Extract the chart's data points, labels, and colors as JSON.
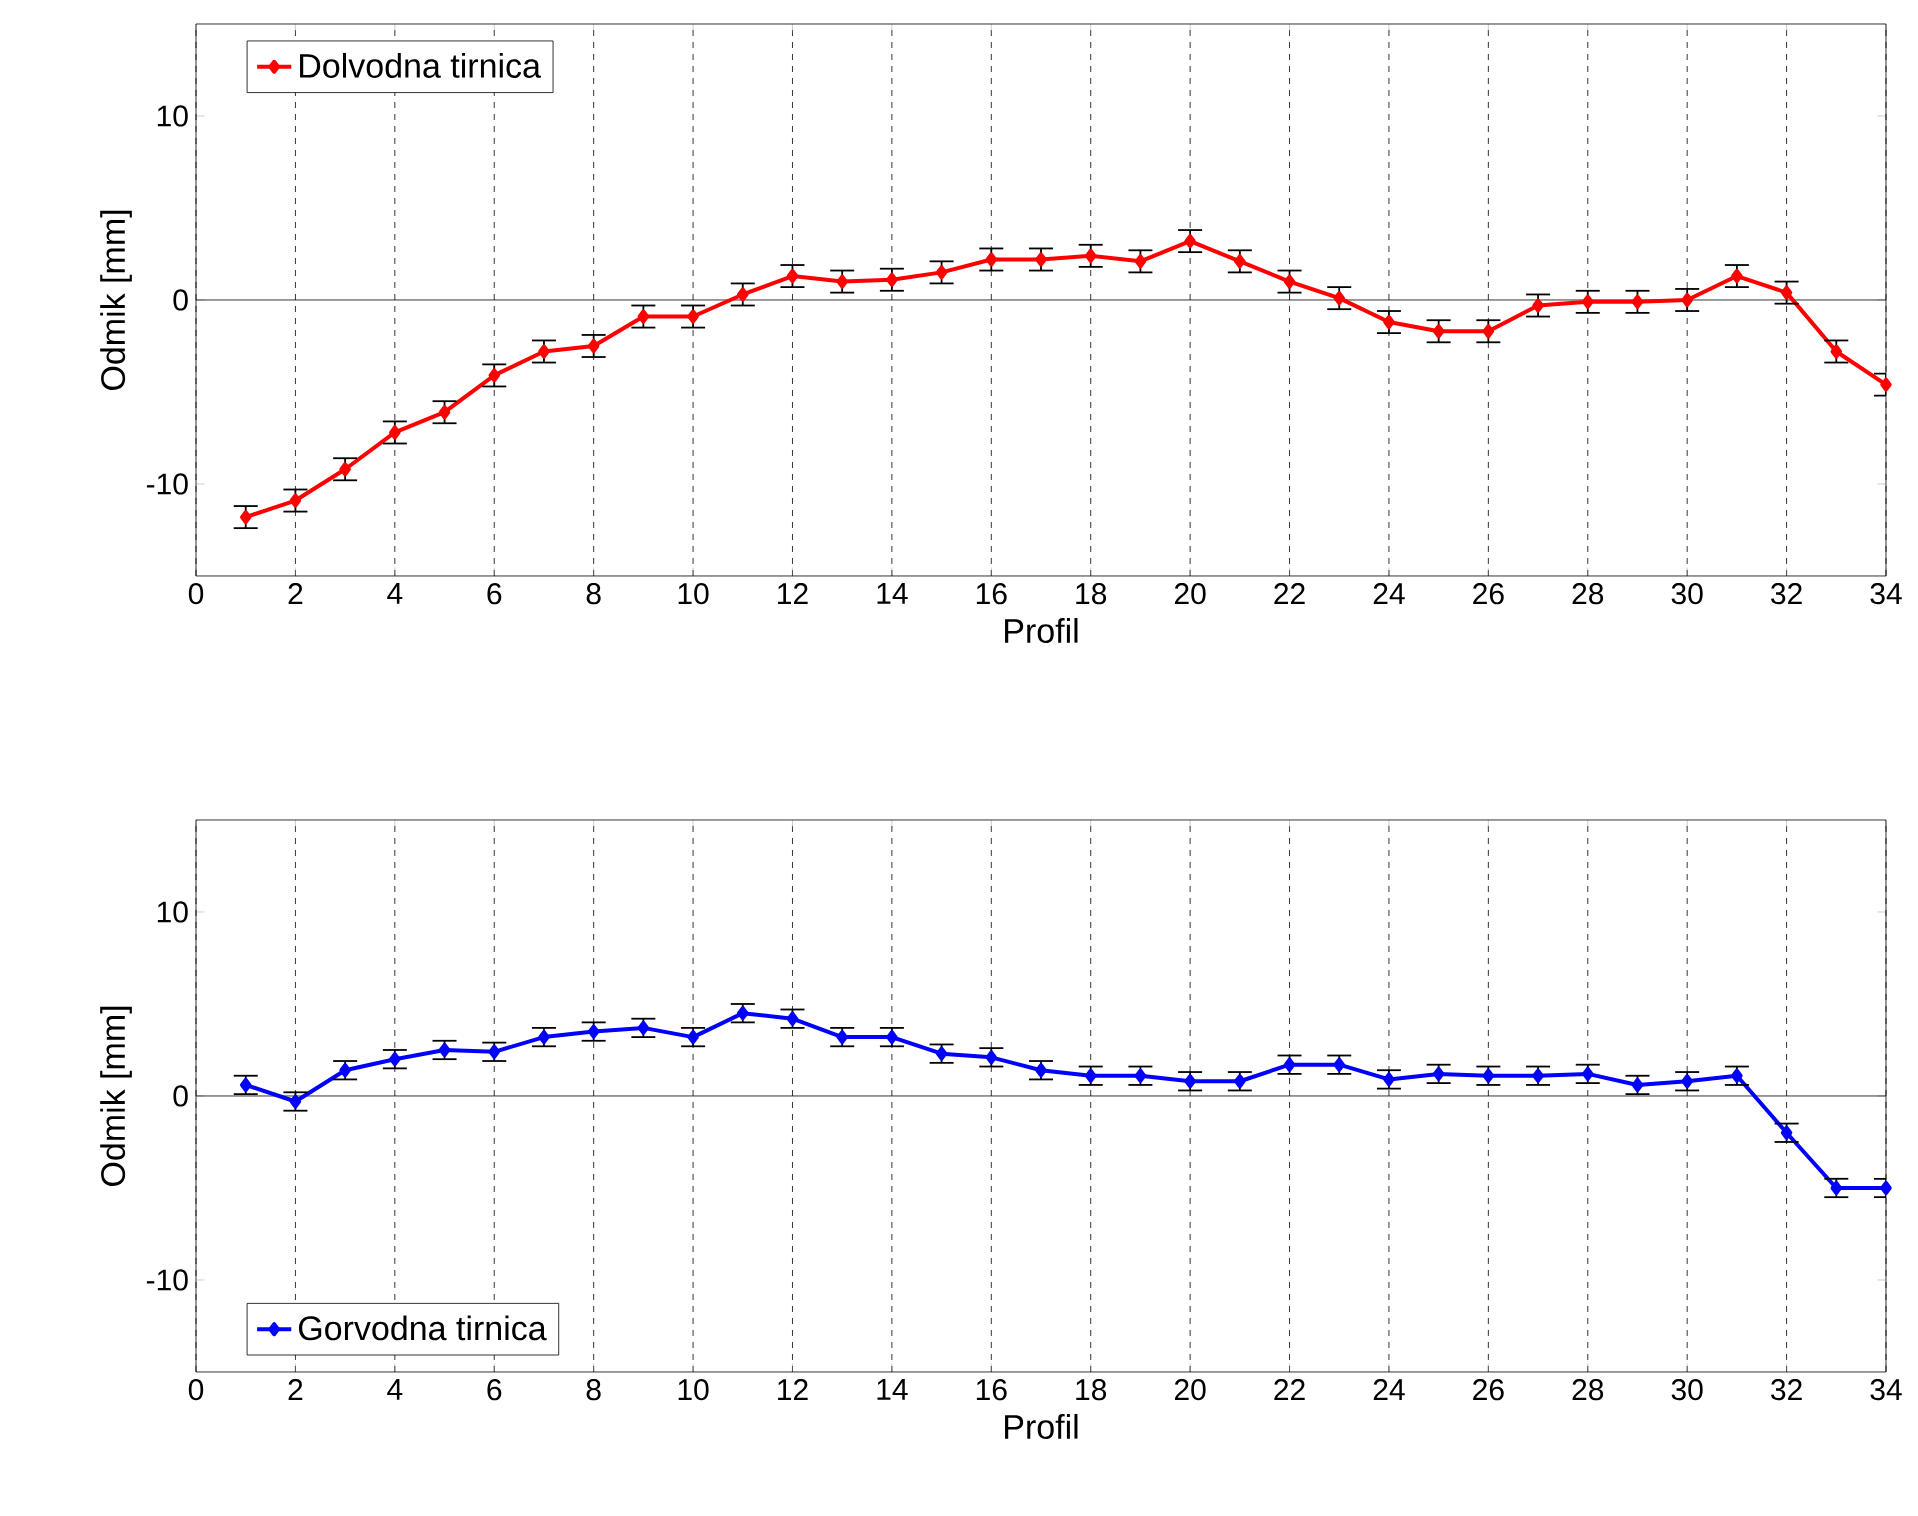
{
  "chart_data": [
    {
      "type": "line",
      "xlabel": "Profil",
      "ylabel": "Odmik [mm]",
      "x": [
        1,
        2,
        3,
        4,
        5,
        6,
        7,
        8,
        9,
        10,
        11,
        12,
        13,
        14,
        15,
        16,
        17,
        18,
        19,
        20,
        21,
        22,
        23,
        24,
        25,
        26,
        27,
        28,
        29,
        30,
        31,
        32,
        33,
        34
      ],
      "series": [
        {
          "name": "Dolvodna tirnica",
          "color": "#ff0000",
          "values": [
            -11.8,
            -10.9,
            -9.2,
            -7.2,
            -6.1,
            -4.1,
            -2.8,
            -2.5,
            -0.9,
            -0.9,
            0.3,
            1.3,
            1.0,
            1.1,
            1.5,
            2.2,
            2.2,
            2.4,
            2.1,
            3.2,
            2.1,
            1.0,
            0.1,
            -1.2,
            -1.7,
            -1.7,
            -0.3,
            -0.1,
            -0.1,
            0,
            1.3,
            0.4,
            -2.8,
            -4.6
          ],
          "errors": [
            0.6,
            0.6,
            0.6,
            0.6,
            0.6,
            0.6,
            0.6,
            0.6,
            0.6,
            0.6,
            0.6,
            0.6,
            0.6,
            0.6,
            0.6,
            0.6,
            0.6,
            0.6,
            0.6,
            0.6,
            0.6,
            0.6,
            0.6,
            0.6,
            0.6,
            0.6,
            0.6,
            0.6,
            0.6,
            0.6,
            0.6,
            0.6,
            0.6,
            0.6
          ]
        }
      ],
      "xlim": [
        0,
        34
      ],
      "ylim": [
        -15,
        15
      ],
      "xticks": [
        0,
        2,
        4,
        6,
        8,
        10,
        12,
        14,
        16,
        18,
        20,
        22,
        24,
        26,
        28,
        30,
        32,
        34
      ],
      "yticks": [
        -10,
        0,
        10
      ],
      "grid": "x",
      "legend": "top left",
      "marker": "diamond",
      "line_style": "solid",
      "ref_lines": [
        {
          "axis": "y",
          "value": 0,
          "color": "#000000"
        }
      ]
    },
    {
      "type": "line",
      "xlabel": "Profil",
      "ylabel": "Odmik [mm]",
      "x": [
        1,
        2,
        3,
        4,
        5,
        6,
        7,
        8,
        9,
        10,
        11,
        12,
        13,
        14,
        15,
        16,
        17,
        18,
        19,
        20,
        21,
        22,
        23,
        24,
        25,
        26,
        27,
        28,
        29,
        30,
        31,
        32,
        33,
        34
      ],
      "series": [
        {
          "name": "Gorvodna tirnica",
          "color": "#0000ff",
          "values": [
            0.6,
            -0.3,
            1.4,
            2.0,
            2.5,
            2.4,
            3.2,
            3.5,
            3.7,
            3.2,
            4.5,
            4.2,
            3.2,
            3.2,
            2.3,
            2.1,
            1.4,
            1.1,
            1.1,
            0.8,
            0.8,
            1.7,
            1.7,
            0.9,
            1.2,
            1.1,
            1.1,
            1.2,
            0.6,
            0.8,
            1.1,
            -2.0,
            -5.0,
            -5.0
          ],
          "errors": [
            0.5,
            0.5,
            0.5,
            0.5,
            0.5,
            0.5,
            0.5,
            0.5,
            0.5,
            0.5,
            0.5,
            0.5,
            0.5,
            0.5,
            0.5,
            0.5,
            0.5,
            0.5,
            0.5,
            0.5,
            0.5,
            0.5,
            0.5,
            0.5,
            0.5,
            0.5,
            0.5,
            0.5,
            0.5,
            0.5,
            0.5,
            0.5,
            0.5,
            0.5
          ]
        }
      ],
      "xlim": [
        0,
        34
      ],
      "ylim": [
        -15,
        15
      ],
      "xticks": [
        0,
        2,
        4,
        6,
        8,
        10,
        12,
        14,
        16,
        18,
        20,
        22,
        24,
        26,
        28,
        30,
        32,
        34
      ],
      "yticks": [
        -10,
        0,
        10
      ],
      "grid": "x",
      "legend": "bottom left",
      "marker": "diamond",
      "line_style": "solid",
      "ref_lines": [
        {
          "axis": "y",
          "value": 0,
          "color": "#000000"
        }
      ]
    }
  ]
}
